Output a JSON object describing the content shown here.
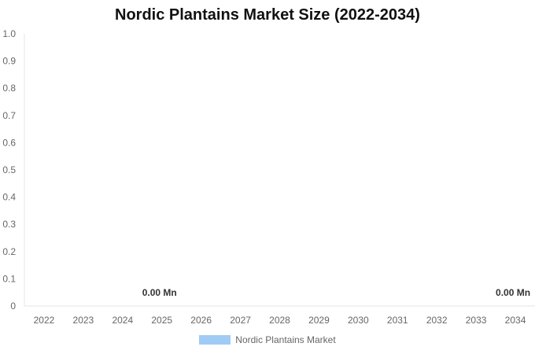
{
  "chart_data": {
    "type": "bar",
    "title": "Nordic Plantains Market Size (2022-2034)",
    "xlabel": "",
    "ylabel": "",
    "categories": [
      "2022",
      "2023",
      "2024",
      "2025",
      "2026",
      "2027",
      "2028",
      "2029",
      "2030",
      "2031",
      "2032",
      "2033",
      "2034"
    ],
    "series": [
      {
        "name": "Nordic Plantains Market",
        "color": "#a0cbf5",
        "values": [
          0,
          0,
          0,
          0,
          0,
          0,
          0,
          0,
          0,
          0,
          0,
          0,
          0
        ]
      }
    ],
    "ylim": [
      0,
      1.0
    ],
    "yticks": [
      "0",
      "0.1",
      "0.2",
      "0.3",
      "0.4",
      "0.5",
      "0.6",
      "0.7",
      "0.8",
      "0.9",
      "1.0"
    ],
    "data_labels": [
      {
        "category": "2025",
        "text": "0.00 Mn"
      },
      {
        "category": "2034",
        "text": "0.00 Mn"
      }
    ],
    "grid": false,
    "legend_position": "bottom"
  }
}
